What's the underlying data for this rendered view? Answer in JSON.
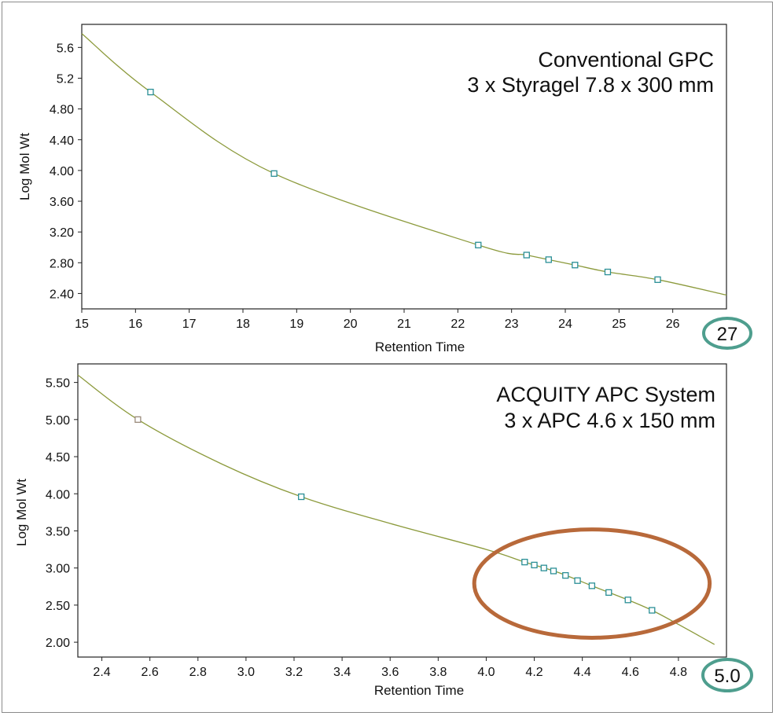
{
  "colors": {
    "curve": "#8c9a3c",
    "marker": "#2a8f96",
    "marker_alt": "#9a8a7a",
    "badge_ring": "#4e9e8e",
    "highlight_ellipse": "#b8693a",
    "axis": "#222222"
  },
  "chart_data": [
    {
      "type": "scatter",
      "title": "Conventional GPC",
      "subtitle": "3 x Styragel 7.8 x 300 mm",
      "xlabel": "Retention Time",
      "ylabel": "Log Mol Wt",
      "xlim": [
        15,
        27
      ],
      "ylim": [
        2.2,
        5.9
      ],
      "x_ticks": [
        15,
        16,
        17,
        18,
        19,
        20,
        21,
        22,
        23,
        24,
        25,
        26
      ],
      "x_tick_labels": [
        "15",
        "16",
        "17",
        "18",
        "19",
        "20",
        "21",
        "22",
        "23",
        "24",
        "25",
        "26"
      ],
      "y_ticks": [
        2.4,
        2.8,
        3.2,
        3.6,
        4.0,
        4.4,
        4.8,
        5.2,
        5.6
      ],
      "y_tick_labels": [
        "2.40",
        "2.80",
        "3.20",
        "3.60",
        "4.00",
        "4.40",
        "4.80",
        "5.2",
        "5.6"
      ],
      "series": [
        {
          "x": [
            16.28,
            18.58,
            22.38,
            23.28,
            23.69,
            24.18,
            24.79,
            25.72
          ],
          "y": [
            5.02,
            3.96,
            3.03,
            2.9,
            2.84,
            2.77,
            2.68,
            2.58
          ]
        }
      ],
      "fit_curve": {
        "x": [
          15.0,
          16.28,
          18.58,
          22.38,
          23.28,
          23.69,
          24.18,
          24.79,
          25.72,
          27.0
        ],
        "y": [
          5.78,
          5.02,
          3.96,
          3.03,
          2.9,
          2.84,
          2.77,
          2.68,
          2.58,
          2.38
        ]
      },
      "badge": "27",
      "grid": false
    },
    {
      "type": "scatter",
      "title": "ACQUITY APC System",
      "subtitle": "3 x APC 4.6 x 150 mm",
      "xlabel": "Retention Time",
      "ylabel": "Log Mol Wt",
      "xlim": [
        2.3,
        5.0
      ],
      "ylim": [
        1.8,
        5.75
      ],
      "x_ticks": [
        2.4,
        2.6,
        2.8,
        3.0,
        3.2,
        3.4,
        3.6,
        3.8,
        4.0,
        4.2,
        4.4,
        4.6,
        4.8
      ],
      "x_tick_labels": [
        "2.4",
        "2.6",
        "2.8",
        "3.0",
        "3.2",
        "3.4",
        "3.6",
        "3.8",
        "4.0",
        "4.2",
        "4.4",
        "4.6",
        "4.8"
      ],
      "y_ticks": [
        2.0,
        2.5,
        3.0,
        3.5,
        4.0,
        4.5,
        5.0,
        5.5
      ],
      "y_tick_labels": [
        "2.00",
        "2.50",
        "3.00",
        "3.50",
        "4.00",
        "4.50",
        "5.00",
        "5.50"
      ],
      "series": [
        {
          "x": [
            2.55,
            3.23,
            4.16,
            4.2,
            4.24,
            4.28,
            4.33,
            4.38,
            4.44,
            4.51,
            4.59,
            4.69
          ],
          "y": [
            5.0,
            3.96,
            3.08,
            3.04,
            3.0,
            2.96,
            2.9,
            2.83,
            2.76,
            2.67,
            2.57,
            2.43
          ],
          "open_marker_index": [
            0
          ]
        }
      ],
      "fit_curve": {
        "x": [
          2.3,
          2.55,
          2.9,
          3.23,
          3.6,
          4.0,
          4.16,
          4.3,
          4.44,
          4.59,
          4.69,
          4.8,
          4.95
        ],
        "y": [
          5.6,
          5.0,
          4.4,
          3.96,
          3.6,
          3.25,
          3.08,
          2.94,
          2.76,
          2.57,
          2.43,
          2.24,
          1.97
        ]
      },
      "highlight_ellipse": {
        "cx": 4.44,
        "cy": 2.79,
        "rx": 0.49,
        "ry": 0.73
      },
      "badge": "5.0",
      "grid": false
    }
  ]
}
